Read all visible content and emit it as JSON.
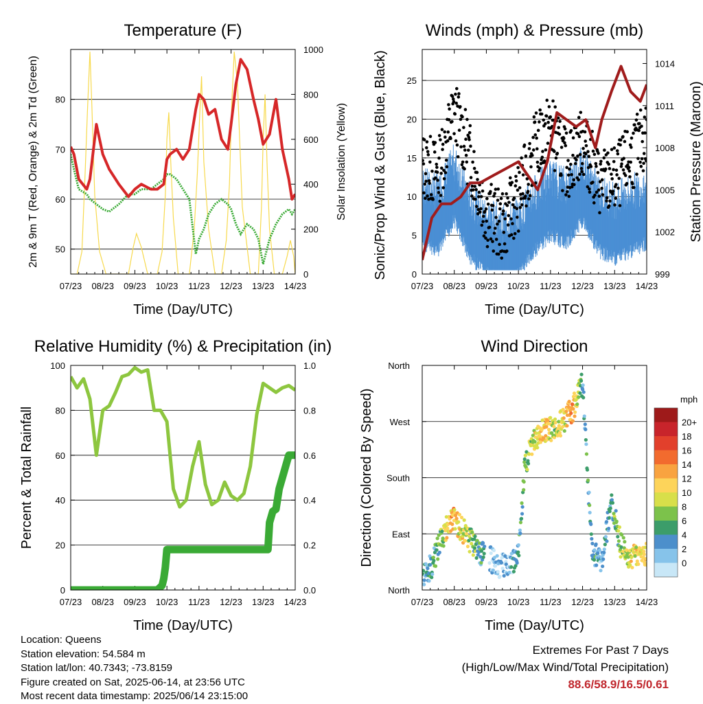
{
  "days": [
    "07/23",
    "08/23",
    "09/23",
    "10/23",
    "11/23",
    "12/23",
    "13/23",
    "14/23"
  ],
  "chart_data": [
    {
      "id": "temperature",
      "type": "line",
      "title": "Temperature (F)",
      "xlabel": "Time (Day/UTC)",
      "ylabel": "2m & 9m T (Red, Orange) & 2m Td (Green)",
      "y2label": "Solar Insolation (Yellow)",
      "ylim": [
        45,
        90
      ],
      "yticks": [
        50,
        60,
        70,
        80
      ],
      "y2lim": [
        0,
        1000
      ],
      "y2ticks": [
        0,
        200,
        400,
        600,
        800,
        1000
      ],
      "x_days": [
        0,
        0.1,
        0.25,
        0.5,
        0.6,
        0.8,
        1,
        1.2,
        1.5,
        1.8,
        2,
        2.2,
        2.5,
        2.7,
        2.9,
        3,
        3.1,
        3.3,
        3.5,
        3.7,
        3.9,
        4,
        4.15,
        4.3,
        4.5,
        4.7,
        4.9,
        5,
        5.15,
        5.3,
        5.5,
        5.7,
        5.85,
        6,
        6.2,
        6.4,
        6.6,
        6.8,
        6.9,
        7
      ],
      "series": [
        {
          "name": "2m T",
          "color": "#d62728",
          "values": [
            70.5,
            69,
            64,
            62,
            64,
            75,
            69,
            66,
            63,
            60.5,
            62,
            63,
            62,
            62,
            63,
            68,
            69,
            70,
            68,
            70,
            78,
            81,
            80,
            77,
            78,
            72,
            70,
            75,
            83,
            88,
            86,
            80,
            76,
            71,
            73,
            80,
            70,
            64,
            60,
            61
          ]
        },
        {
          "name": "2m Td",
          "color": "#3aaa35",
          "values": [
            69,
            66,
            62,
            61,
            60,
            59,
            58,
            57.5,
            59,
            61,
            61,
            62,
            62,
            63,
            64,
            65,
            65,
            64,
            62,
            60,
            49,
            52,
            54,
            57,
            59,
            60,
            59,
            58,
            55,
            53,
            55,
            54,
            52,
            47,
            52,
            55,
            57,
            58,
            57,
            58
          ]
        },
        {
          "name": "Solar Insolation",
          "color": "#f7d94c",
          "axis": "y2",
          "x": [
            0,
            0.2,
            0.35,
            0.45,
            0.52,
            0.6,
            0.66,
            0.75,
            0.9,
            1.1,
            1.6,
            1.8,
            1.95,
            2.05,
            2.2,
            2.4,
            2.7,
            2.85,
            2.95,
            3.0,
            3.06,
            3.12,
            3.2,
            3.35,
            3.7,
            3.85,
            3.95,
            4.02,
            4.08,
            4.15,
            4.3,
            4.5,
            4.7,
            4.85,
            4.95,
            5.02,
            5.1,
            5.2,
            5.35,
            5.6,
            5.85,
            5.95,
            6.0,
            6.06,
            6.12,
            6.2,
            6.35,
            6.6,
            6.75,
            6.85,
            6.95,
            7.0
          ],
          "values": [
            0,
            0,
            100,
            450,
            720,
            990,
            750,
            350,
            100,
            0,
            0,
            0,
            120,
            180,
            120,
            0,
            0,
            100,
            350,
            600,
            720,
            500,
            250,
            0,
            0,
            200,
            450,
            700,
            880,
            500,
            200,
            0,
            0,
            150,
            400,
            750,
            990,
            850,
            300,
            0,
            0,
            300,
            600,
            800,
            500,
            200,
            0,
            0,
            80,
            150,
            80,
            0
          ]
        }
      ]
    },
    {
      "id": "winds",
      "type": "scatter",
      "title": "Winds (mph) & Pressure (mb)",
      "xlabel": "Time (Day/UTC)",
      "ylabel": "Sonic/Prop Wind & Gust (Blue, Black)",
      "y2label": "Station Pressure (Maroon)",
      "ylim": [
        0,
        29
      ],
      "yticks": [
        0,
        5,
        10,
        15,
        20,
        25
      ],
      "y2lim": [
        999,
        1015
      ],
      "y2ticks": [
        999,
        1002,
        1005,
        1008,
        1011,
        1014
      ],
      "x_days": [
        0,
        0.5,
        1,
        1.5,
        2,
        2.5,
        3,
        3.5,
        4,
        4.5,
        5,
        5.5,
        6,
        6.5,
        7
      ],
      "series": [
        {
          "name": "Sonic/Prop Wind",
          "color": "#4a8fd4",
          "type": "area",
          "values": [
            9,
            8,
            12,
            7,
            5,
            4,
            5,
            8,
            10,
            9,
            12,
            8,
            7,
            8,
            9
          ]
        },
        {
          "name": "Gust",
          "color": "#000000",
          "values": [
            14,
            13,
            21,
            15,
            8,
            6,
            10,
            16,
            19,
            14,
            17,
            12,
            12,
            15,
            18
          ]
        },
        {
          "name": "Station Pressure",
          "color": "#a01c1c",
          "type": "line",
          "axis": "y2",
          "x": [
            0,
            0.3,
            0.6,
            0.9,
            1.2,
            1.5,
            1.8,
            2.2,
            2.6,
            3.0,
            3.3,
            3.6,
            3.9,
            4.2,
            4.5,
            4.8,
            5.1,
            5.4,
            5.6,
            5.9,
            6.2,
            6.5,
            6.8,
            7.0
          ],
          "values": [
            1000,
            1003,
            1004,
            1004,
            1004.5,
            1005.5,
            1005.5,
            1006,
            1006.5,
            1007,
            1006,
            1005,
            1007,
            1010.5,
            1010,
            1009.5,
            1010,
            1008,
            1010,
            1012,
            1013.8,
            1012,
            1011.3,
            1012.5
          ]
        }
      ]
    },
    {
      "id": "rh",
      "type": "line",
      "title": "Relative Humidity (%) & Precipitation (in)",
      "xlabel": "Time (Day/UTC)",
      "ylabel": "Percent & Total Rainfall",
      "ylim": [
        0,
        100
      ],
      "yticks": [
        0,
        20,
        40,
        60,
        80,
        100
      ],
      "y2lim": [
        0,
        1.0
      ],
      "y2ticks": [
        "0.0",
        "0.2",
        "0.4",
        "0.6",
        "0.8",
        "1.0"
      ],
      "x_days": [
        0,
        0.2,
        0.4,
        0.6,
        0.8,
        1.0,
        1.2,
        1.4,
        1.6,
        1.8,
        2.0,
        2.2,
        2.4,
        2.6,
        2.8,
        3.0,
        3.2,
        3.4,
        3.6,
        3.8,
        4.0,
        4.2,
        4.4,
        4.6,
        4.8,
        5.0,
        5.2,
        5.4,
        5.6,
        5.8,
        6.0,
        6.2,
        6.4,
        6.6,
        6.8,
        7.0
      ],
      "series": [
        {
          "name": "Relative Humidity",
          "color": "#8dc63f",
          "values": [
            95,
            90,
            94,
            85,
            60,
            80,
            82,
            88,
            95,
            96,
            99,
            97,
            98,
            80,
            80,
            75,
            45,
            37,
            40,
            55,
            66,
            47,
            38,
            40,
            48,
            42,
            40,
            43,
            55,
            78,
            92,
            90,
            88,
            90,
            91,
            89
          ]
        },
        {
          "name": "Total Rainfall",
          "color": "#3aaa35",
          "axis": "y2",
          "x": [
            0,
            1.0,
            2.0,
            2.7,
            2.85,
            2.9,
            2.95,
            3.0,
            3.5,
            4.5,
            5.5,
            6.15,
            6.2,
            6.3,
            6.4,
            6.5,
            6.6,
            6.7,
            6.8,
            7.0
          ],
          "values": [
            0,
            0,
            0,
            0,
            0.02,
            0.05,
            0.1,
            0.18,
            0.18,
            0.18,
            0.18,
            0.18,
            0.3,
            0.35,
            0.36,
            0.45,
            0.5,
            0.55,
            0.6,
            0.6
          ]
        }
      ]
    },
    {
      "id": "wind_direction",
      "type": "scatter",
      "title": "Wind Direction",
      "xlabel": "Time (Day/UTC)",
      "ylabel": "Direction (Colored By Speed)",
      "ycategories": [
        "North",
        "East",
        "South",
        "West",
        "North"
      ],
      "legend": {
        "title": "mph",
        "labels": [
          "20+",
          "18",
          "16",
          "14",
          "12",
          "10",
          "8",
          "6",
          "4",
          "2",
          "0"
        ],
        "colors": [
          "#9e1a1a",
          "#c8242b",
          "#e2402c",
          "#f26b2e",
          "#f9a340",
          "#fdd45a",
          "#d8df4a",
          "#7cc24b",
          "#3c9d6a",
          "#4c8fcb",
          "#86c3ea",
          "#c8e7f7"
        ]
      },
      "x_days": [
        0,
        0.3,
        0.6,
        0.9,
        1.2,
        1.5,
        1.8,
        2.1,
        2.4,
        2.7,
        3.0,
        3.2,
        3.5,
        3.8,
        4.1,
        4.4,
        4.7,
        5.0,
        5.3,
        5.6,
        5.9,
        6.2,
        6.5,
        6.8
      ],
      "directions": [
        20,
        40,
        80,
        115,
        100,
        80,
        60,
        50,
        40,
        35,
        60,
        200,
        240,
        255,
        260,
        270,
        290,
        330,
        60,
        50,
        140,
        70,
        50,
        60
      ],
      "speeds": [
        4,
        6,
        8,
        14,
        12,
        10,
        6,
        4,
        2,
        3,
        6,
        8,
        12,
        14,
        10,
        12,
        16,
        6,
        6,
        4,
        6,
        10,
        12,
        12
      ]
    }
  ],
  "info": {
    "location": "Location: Queens",
    "elevation": "Station elevation: 54.584 m",
    "latlon": "Station lat/lon: 40.7343; -73.8159",
    "created": "Figure created on Sat, 2025-06-14, at 23:56 UTC",
    "recent": "Most recent data timestamp: 2025/06/14 23:15:00"
  },
  "extremes": {
    "heading": "Extremes For Past 7 Days",
    "subheading": "(High/Low/Max Wind/Total Precipitation)",
    "values": "88.6/58.9/16.5/0.61"
  }
}
